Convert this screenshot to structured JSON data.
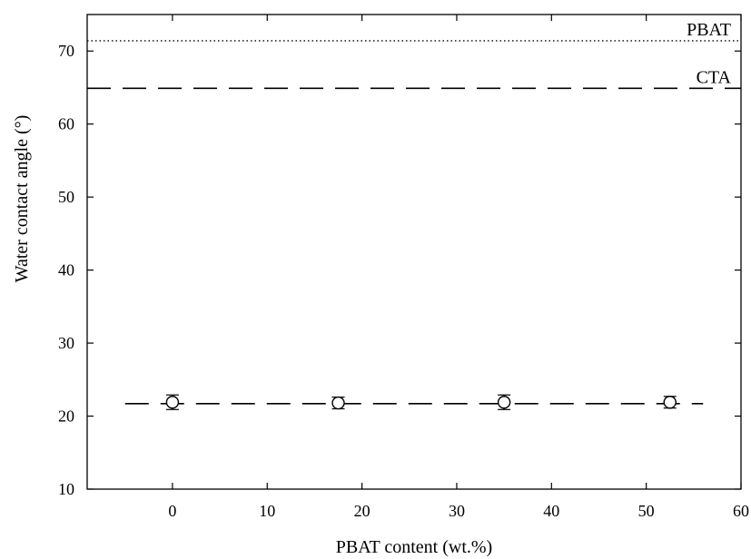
{
  "chart_data": {
    "type": "scatter",
    "title": "",
    "xlabel": "PBAT content (wt.%)",
    "ylabel": "Water contact angle (°)",
    "xlim": [
      -9,
      60
    ],
    "ylim": [
      10,
      75
    ],
    "x_ticks": [
      0,
      10,
      20,
      30,
      40,
      50,
      60
    ],
    "y_ticks": [
      10,
      20,
      30,
      40,
      50,
      60,
      70
    ],
    "grid": false,
    "series": [
      {
        "marker": "open-circle",
        "x": [
          0,
          17.5,
          35,
          52.5
        ],
        "y": [
          21.9,
          21.8,
          21.9,
          21.9
        ],
        "error": [
          1.0,
          0.8,
          1.0,
          0.8
        ]
      }
    ],
    "fit_line": {
      "style": "dashed",
      "x": [
        -5,
        56
      ],
      "y": [
        21.7,
        21.7
      ]
    },
    "reference_lines": [
      {
        "name": "PBAT",
        "y": 71.4,
        "style": "dotted"
      },
      {
        "name": "CTA",
        "y": 64.9,
        "style": "dashed"
      }
    ]
  }
}
